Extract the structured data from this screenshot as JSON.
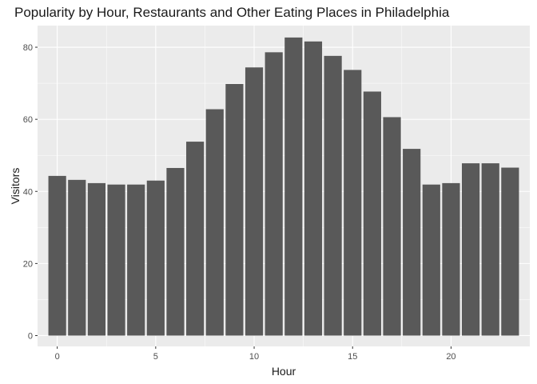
{
  "chart_data": {
    "type": "bar",
    "title": "Popularity by Hour, Restaurants and Other Eating Places in Philadelphia",
    "xlabel": "Hour",
    "ylabel": "Visitors",
    "x": [
      0,
      1,
      2,
      3,
      4,
      5,
      6,
      7,
      8,
      9,
      10,
      11,
      12,
      13,
      14,
      15,
      16,
      17,
      18,
      19,
      20,
      21,
      22,
      23
    ],
    "values": [
      44.3,
      43.2,
      42.3,
      41.9,
      41.9,
      43.0,
      46.5,
      53.8,
      62.8,
      69.8,
      74.4,
      78.6,
      82.7,
      81.6,
      77.6,
      73.7,
      67.7,
      60.6,
      51.8,
      41.9,
      42.3,
      47.8,
      47.8,
      46.6
    ],
    "xlim": [
      -1,
      24
    ],
    "ylim": [
      -3,
      86
    ],
    "xticks": [
      0,
      5,
      10,
      15,
      20
    ],
    "yticks": [
      0,
      20,
      40,
      60,
      80
    ],
    "xtick_labels": [
      "0",
      "5",
      "10",
      "15",
      "20"
    ],
    "ytick_labels": [
      "0",
      "20",
      "40",
      "60",
      "80"
    ],
    "grid": true,
    "bar_color": "#595959",
    "panel_background": "#ebebeb"
  }
}
